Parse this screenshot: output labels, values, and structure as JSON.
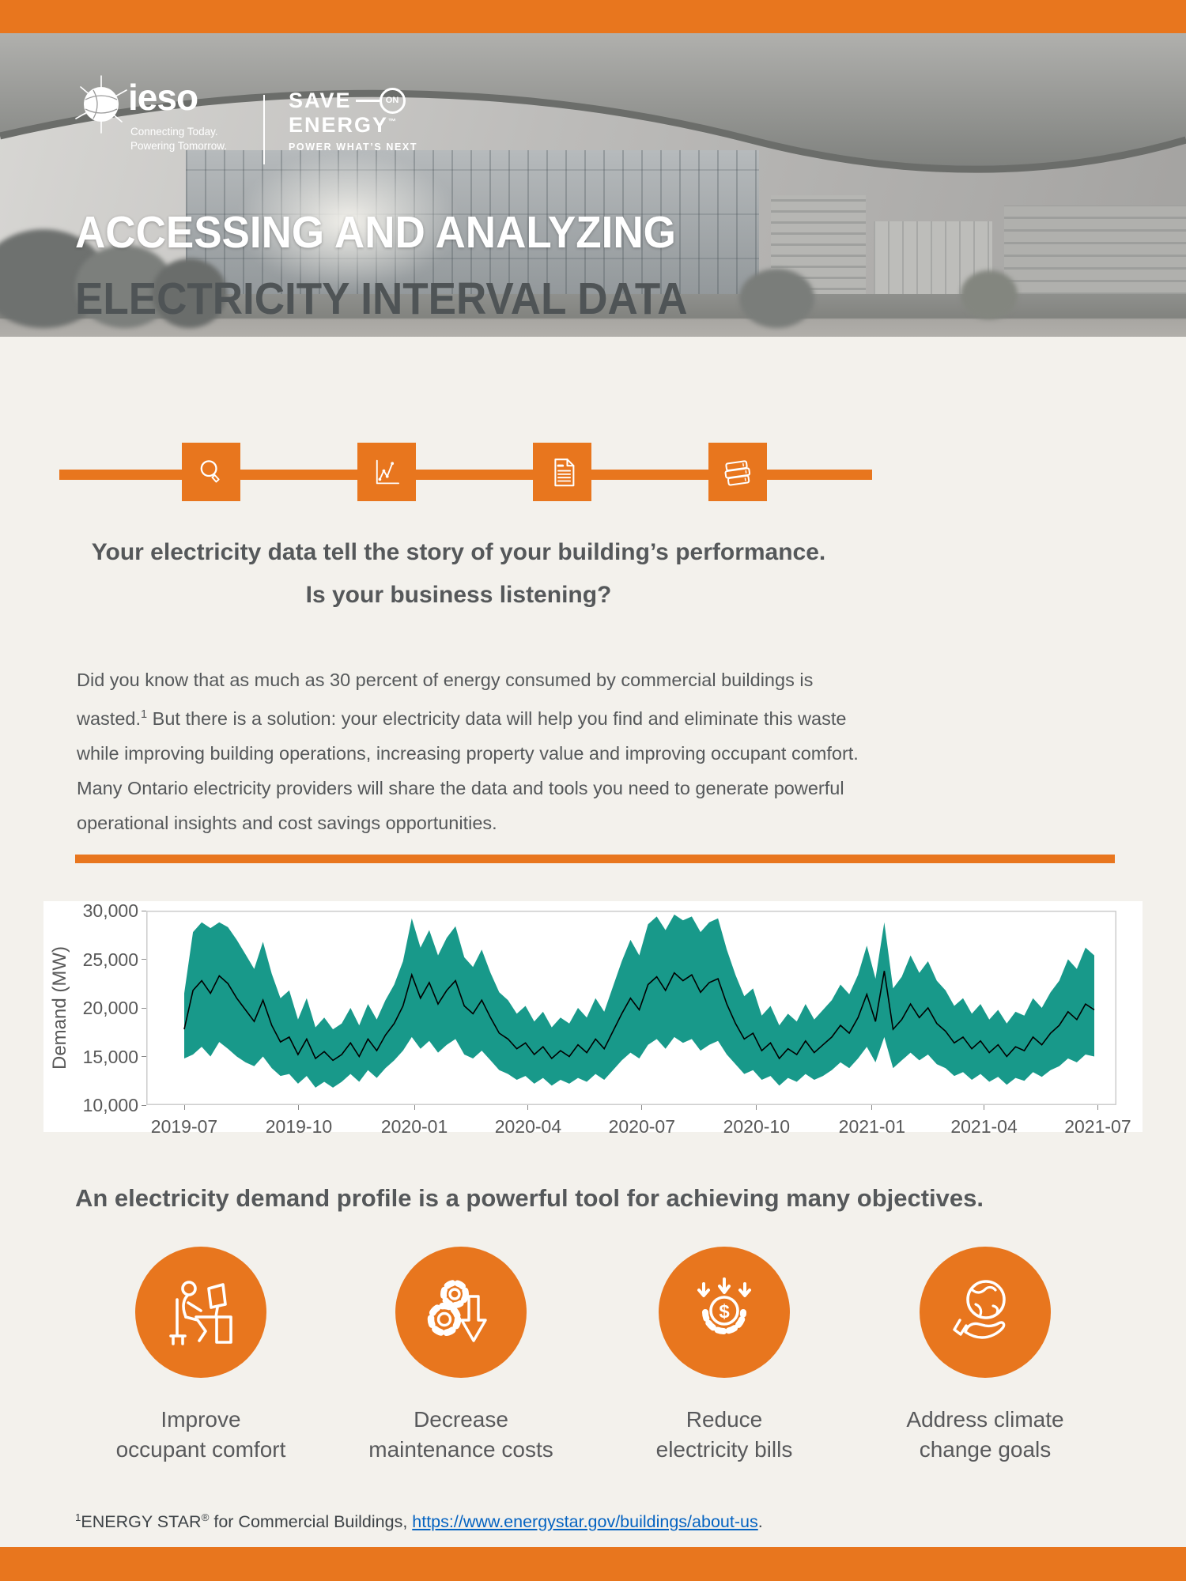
{
  "page": {
    "background": "#F3F1EC",
    "accent_orange": "#E8761E",
    "teal": "#18998A",
    "title_gray": "#4F5456",
    "text_gray": "#55585A",
    "tick_gray": "#595959",
    "link_blue": "#0563C1"
  },
  "header": {
    "ieso_logo": {
      "name": "ieso",
      "tagline1": "Connecting Today.",
      "tagline2": "Powering Tomorrow."
    },
    "soe_logo": {
      "save": "SAVE",
      "on": "ON",
      "energy": "ENERGY",
      "tm": "™",
      "tagline": "POWER WHAT’S NEXT"
    },
    "title_line1": "ACCESSING AND ANALYZING",
    "title_line2": "ELECTRICITY INTERVAL DATA"
  },
  "icon_row": {
    "icons": [
      "magnifier-icon",
      "line-chart-icon",
      "document-icon",
      "books-icon"
    ]
  },
  "intro": {
    "headline_line1": "Your electricity data tell the story of your building’s performance.",
    "headline_line2": "Is your business listening?",
    "body_part1": "Did you know that as much as 30 percent of energy consumed by commercial buildings is wasted.",
    "body_sup": "1",
    "body_part2": " But there is a solution: your electricity data will help you find and eliminate this waste while improving building operations, increasing property value and improving occupant comfort. Many Ontario electricity providers will share the data and tools you need to generate powerful operational insights and cost savings opportunities."
  },
  "chart_data": {
    "type": "area",
    "title": "",
    "xlabel": "",
    "ylabel": "Demand (MW)",
    "ylim": [
      10000,
      30000
    ],
    "yticks": [
      10000,
      15000,
      20000,
      25000,
      30000
    ],
    "xticks": [
      "2019-07",
      "2019-10",
      "2020-01",
      "2020-04",
      "2020-07",
      "2020-10",
      "2021-01",
      "2021-04",
      "2021-07"
    ],
    "xtick_weeks": [
      0,
      13.1,
      26.3,
      39.3,
      52.3,
      65.4,
      78.6,
      91.4,
      104.4
    ],
    "x_unit": "weeks since 2019-07-01",
    "grid": false,
    "legend": false,
    "series": [
      {
        "name": "daily demand range (min-max)",
        "type": "band",
        "color": "#18998A",
        "low": [
          14800,
          15200,
          16000,
          15000,
          16500,
          15800,
          15000,
          14400,
          14000,
          15000,
          13800,
          13000,
          13200,
          12200,
          13000,
          11800,
          12400,
          11800,
          12400,
          13200,
          12400,
          13600,
          12800,
          13800,
          14600,
          15600,
          17000,
          15800,
          16600,
          15400,
          16200,
          16800,
          15200,
          14800,
          15600,
          14600,
          13600,
          13200,
          12600,
          13000,
          12200,
          12800,
          12000,
          12600,
          12200,
          12800,
          12400,
          13200,
          12600,
          13600,
          14600,
          15400,
          14800,
          16200,
          16800,
          15800,
          17000,
          16400,
          16800,
          15600,
          16200,
          16600,
          15200,
          14200,
          13200,
          13600,
          12600,
          13000,
          12000,
          12800,
          12400,
          13200,
          12600,
          13000,
          13600,
          14400,
          13800,
          14800,
          16000,
          14400,
          17000,
          13800,
          14600,
          15400,
          14600,
          15200,
          14200,
          13800,
          13000,
          13400,
          12600,
          13200,
          12400,
          12900,
          12100,
          12800,
          12500,
          13400,
          12900,
          13600,
          14000,
          14800,
          14400,
          15200,
          15000
        ],
        "high": [
          21500,
          27800,
          28800,
          28200,
          28800,
          28300,
          27000,
          25500,
          24000,
          26800,
          23500,
          21000,
          21800,
          18800,
          21000,
          18000,
          19000,
          17800,
          18400,
          20000,
          18200,
          20400,
          18800,
          20800,
          22400,
          24800,
          29200,
          26200,
          28000,
          25400,
          27200,
          28400,
          25200,
          24200,
          26000,
          23600,
          21600,
          20800,
          19400,
          20200,
          18600,
          19600,
          18000,
          19000,
          18400,
          20000,
          19000,
          21000,
          19600,
          22200,
          24800,
          27000,
          25400,
          28600,
          29400,
          28000,
          29600,
          29000,
          29400,
          27800,
          28800,
          29200,
          26000,
          23400,
          21200,
          22000,
          19200,
          20200,
          18200,
          19400,
          18600,
          20400,
          18800,
          19800,
          20800,
          22400,
          21400,
          23400,
          26400,
          23000,
          28800,
          22000,
          23200,
          25400,
          23600,
          24800,
          22800,
          21800,
          20200,
          21000,
          19400,
          20400,
          18800,
          19800,
          18400,
          19600,
          19200,
          21000,
          20000,
          21600,
          22800,
          25000,
          24000,
          26200,
          25400
        ]
      },
      {
        "name": "daily average demand",
        "type": "line",
        "color": "#000000",
        "values": [
          17800,
          21800,
          22800,
          21500,
          23300,
          22500,
          21000,
          19800,
          18600,
          20800,
          18200,
          16500,
          17000,
          15200,
          16800,
          14800,
          15500,
          14600,
          15200,
          16400,
          15000,
          16800,
          15600,
          17200,
          18400,
          20200,
          23400,
          21000,
          22600,
          20400,
          21800,
          22800,
          20200,
          19400,
          20800,
          19000,
          17400,
          16800,
          15800,
          16400,
          15200,
          16000,
          14800,
          15600,
          15000,
          16200,
          15400,
          16800,
          15800,
          17600,
          19400,
          21000,
          19800,
          22400,
          23200,
          21800,
          23600,
          22800,
          23400,
          21600,
          22600,
          23000,
          20400,
          18400,
          16800,
          17400,
          15600,
          16400,
          14800,
          15800,
          15200,
          16600,
          15400,
          16200,
          17000,
          18200,
          17400,
          19000,
          21400,
          18600,
          23800,
          17800,
          18800,
          20400,
          19000,
          20000,
          18400,
          17600,
          16400,
          17000,
          15800,
          16600,
          15400,
          16200,
          15000,
          16000,
          15600,
          17000,
          16200,
          17400,
          18200,
          19600,
          18800,
          20400,
          19800
        ]
      }
    ]
  },
  "objectives": {
    "heading": "An electricity demand profile is a powerful tool for achieving many objectives.",
    "items": [
      {
        "icon": "occupant-comfort-icon",
        "label_line1": "Improve",
        "label_line2": "occupant comfort"
      },
      {
        "icon": "maintenance-costs-icon",
        "label_line1": "Decrease",
        "label_line2": "maintenance costs"
      },
      {
        "icon": "electricity-bills-icon",
        "label_line1": "Reduce",
        "label_line2": "electricity bills"
      },
      {
        "icon": "climate-goals-icon",
        "label_line1": "Address climate",
        "label_line2": "change goals"
      }
    ]
  },
  "footnote": {
    "sup": "1",
    "brand": "ENERGY STAR",
    "reg": "®",
    "rest": " for Commercial Buildings, ",
    "link": "https://www.energystar.gov/buildings/about-us",
    "period": "."
  }
}
